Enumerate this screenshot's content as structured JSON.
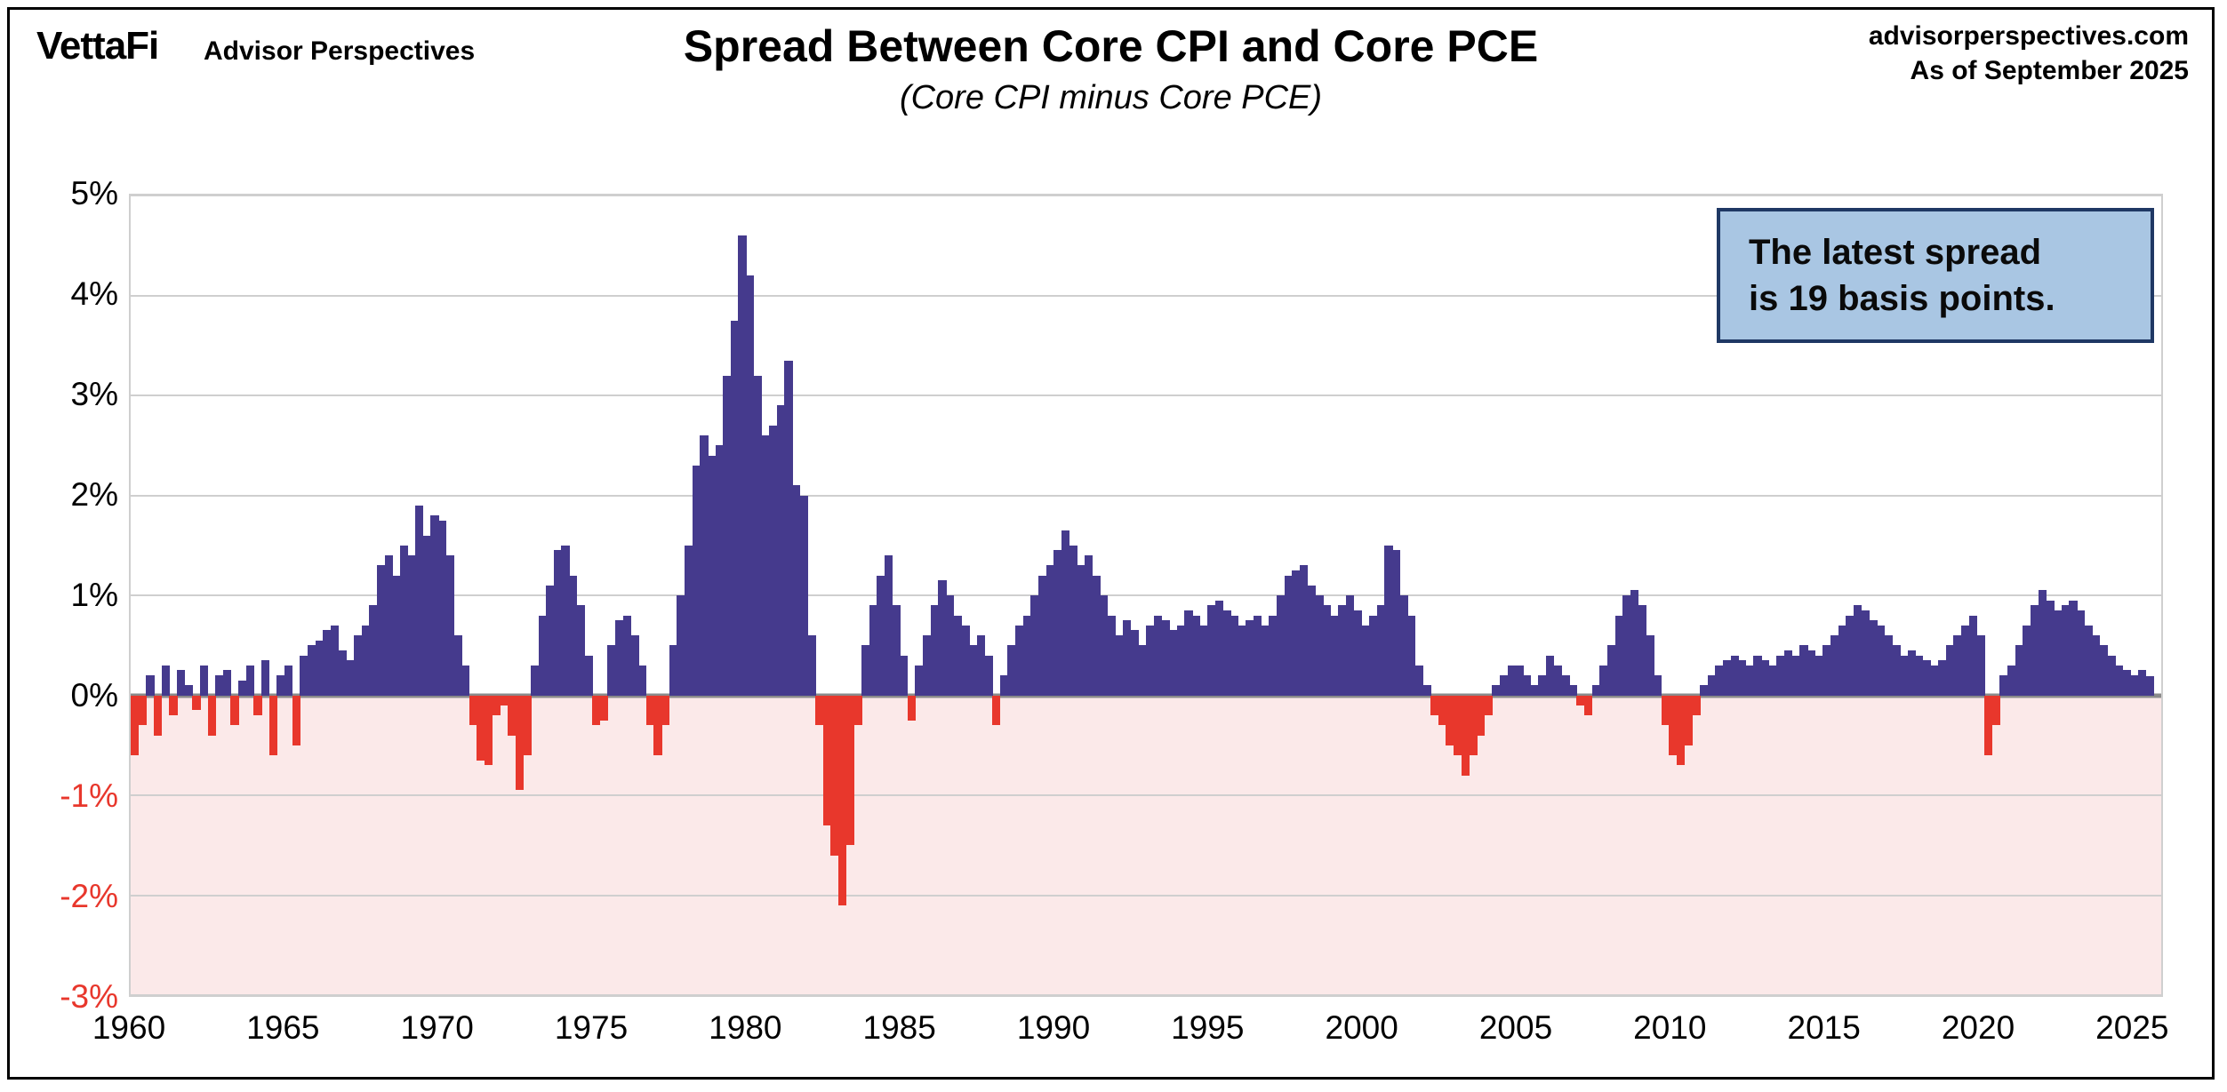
{
  "header": {
    "logo_text": "VettaFi",
    "logo_sub": "Advisor Perspectives",
    "title": "Spread Between Core CPI and Core PCE",
    "subtitle": "(Core CPI minus Core PCE)",
    "source": "advisorperspectives.com",
    "as_of": "As of September 2025"
  },
  "annotation": {
    "line1": "The latest spread",
    "line2": "is 19 basis points.",
    "latest_spread_bps": 19
  },
  "chart_data": {
    "type": "bar",
    "title": "Spread Between Core CPI and Core PCE",
    "subtitle": "(Core CPI minus Core PCE)",
    "series_name": "Core CPI minus Core PCE (percent)",
    "ylim": [
      -3,
      5
    ],
    "x_start": 1960,
    "x_end": 2026,
    "points_per_year": 4,
    "grid": true,
    "y_ticks": [
      {
        "label": "5%",
        "value": 5
      },
      {
        "label": "4%",
        "value": 4
      },
      {
        "label": "3%",
        "value": 3
      },
      {
        "label": "2%",
        "value": 2
      },
      {
        "label": "1%",
        "value": 1
      },
      {
        "label": "0%",
        "value": 0
      },
      {
        "label": "-1%",
        "value": -1
      },
      {
        "label": "-2%",
        "value": -2
      },
      {
        "label": "-3%",
        "value": -3
      }
    ],
    "x_ticks": [
      1960,
      1965,
      1970,
      1975,
      1980,
      1985,
      1990,
      1995,
      2000,
      2005,
      2010,
      2015,
      2020,
      2025
    ],
    "colors": {
      "positive": "#453A8D",
      "negative": "#E8372C",
      "negative_region": "#FBE9E9",
      "negative_tick_label": "#E8372C",
      "callout_bg": "#A9C6E3",
      "callout_border": "#1F3864"
    },
    "values": [
      -0.6,
      -0.3,
      0.2,
      -0.4,
      0.3,
      -0.2,
      0.25,
      0.1,
      -0.15,
      0.3,
      -0.4,
      0.2,
      0.25,
      -0.3,
      0.15,
      0.3,
      -0.2,
      0.35,
      -0.6,
      0.2,
      0.3,
      -0.5,
      0.4,
      0.5,
      0.55,
      0.65,
      0.7,
      0.45,
      0.35,
      0.6,
      0.7,
      0.9,
      1.3,
      1.4,
      1.2,
      1.5,
      1.4,
      1.9,
      1.6,
      1.8,
      1.75,
      1.4,
      0.6,
      0.3,
      -0.3,
      -0.65,
      -0.7,
      -0.2,
      -0.1,
      -0.4,
      -0.95,
      -0.6,
      0.3,
      0.8,
      1.1,
      1.45,
      1.5,
      1.2,
      0.9,
      0.4,
      -0.3,
      -0.25,
      0.5,
      0.75,
      0.8,
      0.6,
      0.3,
      -0.3,
      -0.6,
      -0.3,
      0.5,
      1.0,
      1.5,
      2.3,
      2.6,
      2.4,
      2.5,
      3.2,
      3.75,
      4.6,
      4.2,
      3.2,
      2.6,
      2.7,
      2.9,
      3.35,
      2.1,
      2.0,
      0.6,
      -0.3,
      -1.3,
      -1.6,
      -2.1,
      -1.5,
      -0.3,
      0.5,
      0.9,
      1.2,
      1.4,
      0.9,
      0.4,
      -0.25,
      0.3,
      0.6,
      0.9,
      1.15,
      1.0,
      0.8,
      0.7,
      0.5,
      0.6,
      0.4,
      -0.3,
      0.2,
      0.5,
      0.7,
      0.8,
      1.0,
      1.2,
      1.3,
      1.45,
      1.65,
      1.5,
      1.3,
      1.4,
      1.2,
      1.0,
      0.8,
      0.6,
      0.75,
      0.65,
      0.5,
      0.7,
      0.8,
      0.75,
      0.65,
      0.7,
      0.85,
      0.8,
      0.7,
      0.9,
      0.95,
      0.85,
      0.8,
      0.7,
      0.75,
      0.8,
      0.7,
      0.8,
      1.0,
      1.2,
      1.25,
      1.3,
      1.1,
      1.0,
      0.9,
      0.8,
      0.9,
      1.0,
      0.85,
      0.7,
      0.8,
      0.9,
      1.5,
      1.45,
      1.0,
      0.8,
      0.3,
      0.1,
      -0.2,
      -0.3,
      -0.5,
      -0.6,
      -0.8,
      -0.6,
      -0.4,
      -0.2,
      0.1,
      0.2,
      0.3,
      0.3,
      0.2,
      0.1,
      0.2,
      0.4,
      0.3,
      0.2,
      0.1,
      -0.1,
      -0.2,
      0.1,
      0.3,
      0.5,
      0.8,
      1.0,
      1.05,
      0.9,
      0.6,
      0.2,
      -0.3,
      -0.6,
      -0.7,
      -0.5,
      -0.2,
      0.1,
      0.2,
      0.3,
      0.35,
      0.4,
      0.35,
      0.3,
      0.4,
      0.35,
      0.3,
      0.4,
      0.45,
      0.4,
      0.5,
      0.45,
      0.4,
      0.5,
      0.6,
      0.7,
      0.8,
      0.9,
      0.85,
      0.75,
      0.7,
      0.6,
      0.5,
      0.4,
      0.45,
      0.4,
      0.35,
      0.3,
      0.35,
      0.5,
      0.6,
      0.7,
      0.8,
      0.6,
      -0.6,
      -0.3,
      0.2,
      0.3,
      0.5,
      0.7,
      0.9,
      1.05,
      0.95,
      0.85,
      0.9,
      0.95,
      0.85,
      0.7,
      0.6,
      0.5,
      0.4,
      0.3,
      0.25,
      0.2,
      0.25,
      0.19
    ]
  }
}
